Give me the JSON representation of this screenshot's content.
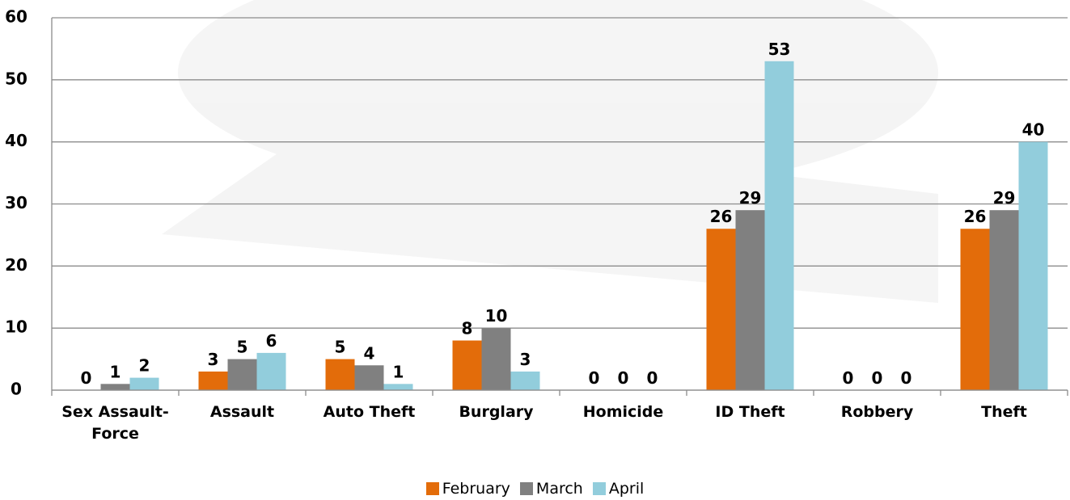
{
  "chart_data": {
    "type": "bar",
    "categories": [
      "Sex Assault-Force",
      "Assault",
      "Auto Theft",
      "Burglary",
      "Homicide",
      "ID Theft",
      "Robbery",
      "Theft"
    ],
    "series": [
      {
        "name": "February",
        "color": "#e36c0a",
        "values": [
          0,
          3,
          5,
          8,
          0,
          26,
          0,
          26
        ]
      },
      {
        "name": "March",
        "color": "#808080",
        "values": [
          1,
          5,
          4,
          10,
          0,
          29,
          0,
          29
        ]
      },
      {
        "name": "April",
        "color": "#92cddc",
        "values": [
          2,
          6,
          1,
          3,
          0,
          53,
          0,
          40
        ]
      }
    ],
    "ylim": [
      0,
      60
    ],
    "yticks": [
      0,
      10,
      20,
      30,
      40,
      50,
      60
    ],
    "grid": true,
    "legend": "bottom"
  }
}
